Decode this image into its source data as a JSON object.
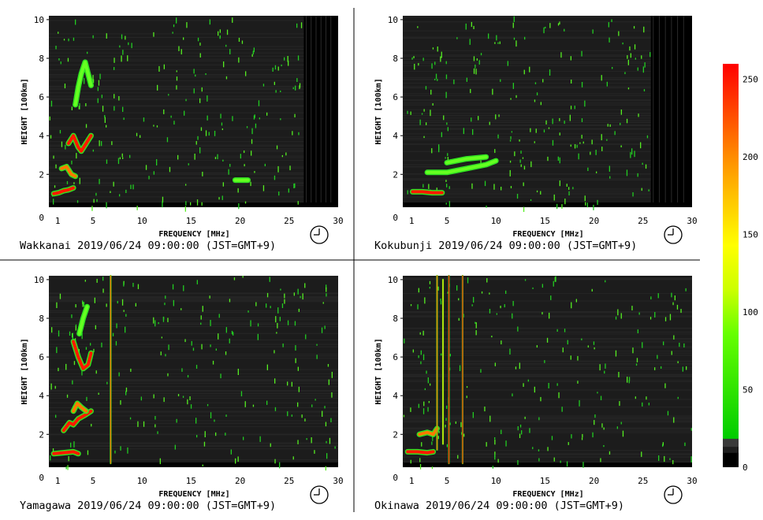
{
  "chart_data": [
    {
      "type": "heatmap",
      "station": "Wakkanai",
      "caption": "Wakkanai 2019/06/24 09:00:00 (JST=GMT+9)",
      "xlabel": "FREQUENCY [MHz]",
      "ylabel": "HEIGHT [100km]",
      "xlim": [
        0.5,
        30
      ],
      "ylim": [
        0.3,
        10.2
      ],
      "xticks": [
        1,
        5,
        10,
        15,
        20,
        25,
        30
      ],
      "yticks": [
        0,
        2,
        4,
        6,
        8,
        10
      ],
      "no_data_from_mhz": 26.5,
      "echo_traces": [
        {
          "layer": "E",
          "points": [
            [
              1.0,
              1.0
            ],
            [
              1.5,
              1.05
            ],
            [
              2.0,
              1.15
            ],
            [
              2.5,
              1.2
            ],
            [
              3.0,
              1.3
            ]
          ],
          "intensity": 250
        },
        {
          "layer": "Es",
          "points": [
            [
              1.8,
              2.3
            ],
            [
              2.3,
              2.4
            ],
            [
              2.8,
              2.0
            ],
            [
              3.2,
              1.9
            ]
          ],
          "intensity": 200
        },
        {
          "layer": "F1",
          "points": [
            [
              2.5,
              3.6
            ],
            [
              3.0,
              4.0
            ],
            [
              3.5,
              3.4
            ],
            [
              3.8,
              3.2
            ],
            [
              4.3,
              3.6
            ],
            [
              4.8,
              4.0
            ]
          ],
          "intensity": 250
        },
        {
          "layer": "F2",
          "points": [
            [
              3.2,
              5.6
            ],
            [
              3.5,
              6.5
            ],
            [
              3.8,
              7.2
            ],
            [
              4.2,
              7.8
            ],
            [
              4.5,
              7.2
            ],
            [
              4.8,
              6.6
            ]
          ],
          "intensity": 90
        },
        {
          "layer": "echo",
          "points": [
            [
              19.5,
              1.7
            ],
            [
              20.8,
              1.7
            ]
          ],
          "intensity": 90
        }
      ]
    },
    {
      "type": "heatmap",
      "station": "Kokubunji",
      "caption": "Kokubunji 2019/06/24 09:00:00 (JST=GMT+9)",
      "xlabel": "FREQUENCY [MHz]",
      "ylabel": "HEIGHT [100km]",
      "xlim": [
        0.5,
        30
      ],
      "ylim": [
        0.3,
        10.2
      ],
      "xticks": [
        1,
        5,
        10,
        15,
        20,
        25,
        30
      ],
      "yticks": [
        0,
        2,
        4,
        6,
        8,
        10
      ],
      "no_data_from_mhz": 25.8,
      "echo_traces": [
        {
          "layer": "E",
          "points": [
            [
              1.5,
              1.1
            ],
            [
              2.5,
              1.1
            ],
            [
              3.5,
              1.05
            ],
            [
              4.5,
              1.05
            ]
          ],
          "intensity": 230
        },
        {
          "layer": "Es",
          "points": [
            [
              3.0,
              2.1
            ],
            [
              5.0,
              2.1
            ],
            [
              7.0,
              2.3
            ],
            [
              9.0,
              2.5
            ],
            [
              10.0,
              2.7
            ]
          ],
          "intensity": 100
        },
        {
          "layer": "Es2",
          "points": [
            [
              5.0,
              2.6
            ],
            [
              7.0,
              2.8
            ],
            [
              9.0,
              2.9
            ]
          ],
          "intensity": 100
        }
      ]
    },
    {
      "type": "heatmap",
      "station": "Yamagawa",
      "caption": "Yamagawa 2019/06/24 09:00:00 (JST=GMT+9)",
      "xlabel": "FREQUENCY [MHz]",
      "ylabel": "HEIGHT [100km]",
      "xlim": [
        0.5,
        30
      ],
      "ylim": [
        0.3,
        10.2
      ],
      "xticks": [
        1,
        5,
        10,
        15,
        20,
        25,
        30
      ],
      "yticks": [
        0,
        2,
        4,
        6,
        8,
        10
      ],
      "no_data_from_mhz": null,
      "echo_traces": [
        {
          "layer": "E",
          "points": [
            [
              1.0,
              1.0
            ],
            [
              2.0,
              1.05
            ],
            [
              3.0,
              1.1
            ],
            [
              3.5,
              1.0
            ]
          ],
          "intensity": 250
        },
        {
          "layer": "Es",
          "points": [
            [
              2.0,
              2.2
            ],
            [
              2.6,
              2.6
            ],
            [
              3.0,
              2.5
            ],
            [
              3.5,
              2.8
            ],
            [
              4.2,
              3.0
            ],
            [
              4.8,
              3.2
            ]
          ],
          "intensity": 230
        },
        {
          "layer": "F1",
          "points": [
            [
              3.0,
              3.2
            ],
            [
              3.4,
              3.6
            ],
            [
              3.8,
              3.4
            ],
            [
              4.3,
              3.2
            ]
          ],
          "intensity": 220
        },
        {
          "layer": "F2",
          "points": [
            [
              3.0,
              6.8
            ],
            [
              3.5,
              6.0
            ],
            [
              4.0,
              5.4
            ],
            [
              4.5,
              5.6
            ],
            [
              4.8,
              6.2
            ]
          ],
          "intensity": 240
        },
        {
          "layer": "F2-upper",
          "points": [
            [
              3.6,
              7.2
            ],
            [
              4.0,
              8.0
            ],
            [
              4.4,
              8.6
            ]
          ],
          "intensity": 90
        },
        {
          "layer": "spur",
          "points": [
            [
              6.8,
              0.5
            ],
            [
              6.8,
              10.2
            ]
          ],
          "intensity": 220
        }
      ]
    },
    {
      "type": "heatmap",
      "station": "Okinawa",
      "caption": "Okinawa 2019/06/24 09:00:00 (JST=GMT+9)",
      "xlabel": "FREQUENCY [MHz]",
      "ylabel": "HEIGHT [100km]",
      "xlim": [
        0.5,
        30
      ],
      "ylim": [
        0.3,
        10.2
      ],
      "xticks": [
        1,
        5,
        10,
        15,
        20,
        25,
        30
      ],
      "yticks": [
        0,
        2,
        4,
        6,
        8,
        10
      ],
      "no_data_from_mhz": null,
      "echo_traces": [
        {
          "layer": "E",
          "points": [
            [
              1.0,
              1.1
            ],
            [
              2.0,
              1.1
            ],
            [
              3.0,
              1.05
            ],
            [
              3.6,
              1.1
            ]
          ],
          "intensity": 250
        },
        {
          "layer": "Es",
          "points": [
            [
              2.2,
              2.0
            ],
            [
              3.0,
              2.1
            ],
            [
              3.6,
              2.0
            ],
            [
              4.0,
              2.3
            ]
          ],
          "intensity": 220
        },
        {
          "layer": "spur-a",
          "points": [
            [
              4.0,
              1.2
            ],
            [
              4.0,
              10.2
            ]
          ],
          "intensity": 200
        },
        {
          "layer": "spur-b",
          "points": [
            [
              4.6,
              1.5
            ],
            [
              4.6,
              10.0
            ]
          ],
          "intensity": 160
        },
        {
          "layer": "spur-c",
          "points": [
            [
              5.2,
              0.5
            ],
            [
              5.2,
              10.2
            ]
          ],
          "intensity": 230
        },
        {
          "layer": "spur-d",
          "points": [
            [
              6.6,
              0.5
            ],
            [
              6.6,
              10.2
            ]
          ],
          "intensity": 230
        }
      ]
    }
  ],
  "colorbar": {
    "ticks": [
      0,
      50,
      100,
      150,
      200,
      250
    ],
    "min": 0,
    "max": 260,
    "colors": [
      "#000000",
      "#2a2a2a",
      "#00c000",
      "#7fff00",
      "#ffff00",
      "#ffa000",
      "#ff0000"
    ]
  }
}
